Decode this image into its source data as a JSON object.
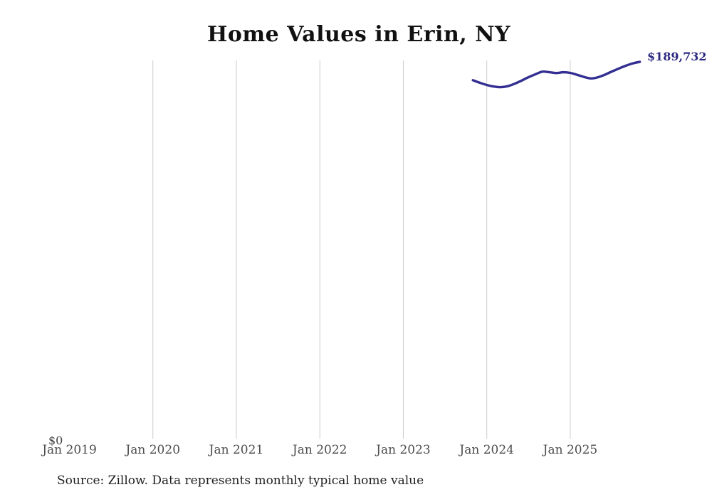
{
  "page": {
    "background": "#ffffff"
  },
  "chart_data": {
    "type": "line",
    "title": "Home Values in Erin, NY",
    "xlabel": "",
    "ylabel": "",
    "grid": "vertical-only",
    "grid_color": "#cccccc",
    "line_color": "#332f92",
    "end_label_color": "#2c2a80",
    "ylim": [
      0,
      190450
    ],
    "y_zero_label": "$0",
    "end_label": "$189,732",
    "legend": "none",
    "x_ticks": [
      {
        "label": "Jan 2019",
        "date": "2019-01",
        "gridline": false
      },
      {
        "label": "Jan 2020",
        "date": "2020-01",
        "gridline": true
      },
      {
        "label": "Jan 2021",
        "date": "2021-01",
        "gridline": true
      },
      {
        "label": "Jan 2022",
        "date": "2022-01",
        "gridline": true
      },
      {
        "label": "Jan 2023",
        "date": "2023-01",
        "gridline": true
      },
      {
        "label": "Jan 2024",
        "date": "2024-01",
        "gridline": true
      },
      {
        "label": "Jan 2025",
        "date": "2025-01",
        "gridline": true
      }
    ],
    "series": [
      {
        "name": "Monthly typical home value",
        "points": [
          {
            "date": "2023-11",
            "value": 180500
          },
          {
            "date": "2023-12",
            "value": 179200
          },
          {
            "date": "2024-01",
            "value": 178100
          },
          {
            "date": "2024-02",
            "value": 177300
          },
          {
            "date": "2024-03",
            "value": 177000
          },
          {
            "date": "2024-04",
            "value": 177500
          },
          {
            "date": "2024-05",
            "value": 178700
          },
          {
            "date": "2024-06",
            "value": 180300
          },
          {
            "date": "2024-07",
            "value": 182000
          },
          {
            "date": "2024-08",
            "value": 183500
          },
          {
            "date": "2024-09",
            "value": 184800
          },
          {
            "date": "2024-10",
            "value": 184500
          },
          {
            "date": "2024-11",
            "value": 184100
          },
          {
            "date": "2024-12",
            "value": 184500
          },
          {
            "date": "2025-01",
            "value": 184200
          },
          {
            "date": "2025-02",
            "value": 183200
          },
          {
            "date": "2025-03",
            "value": 182100
          },
          {
            "date": "2025-04",
            "value": 181400
          },
          {
            "date": "2025-05",
            "value": 182000
          },
          {
            "date": "2025-06",
            "value": 183300
          },
          {
            "date": "2025-07",
            "value": 184900
          },
          {
            "date": "2025-08",
            "value": 186400
          },
          {
            "date": "2025-09",
            "value": 187800
          },
          {
            "date": "2025-10",
            "value": 189000
          },
          {
            "date": "2025-11",
            "value": 189732
          }
        ]
      }
    ]
  },
  "footer": {
    "source_note": "Source: Zillow. Data represents monthly typical home value"
  }
}
